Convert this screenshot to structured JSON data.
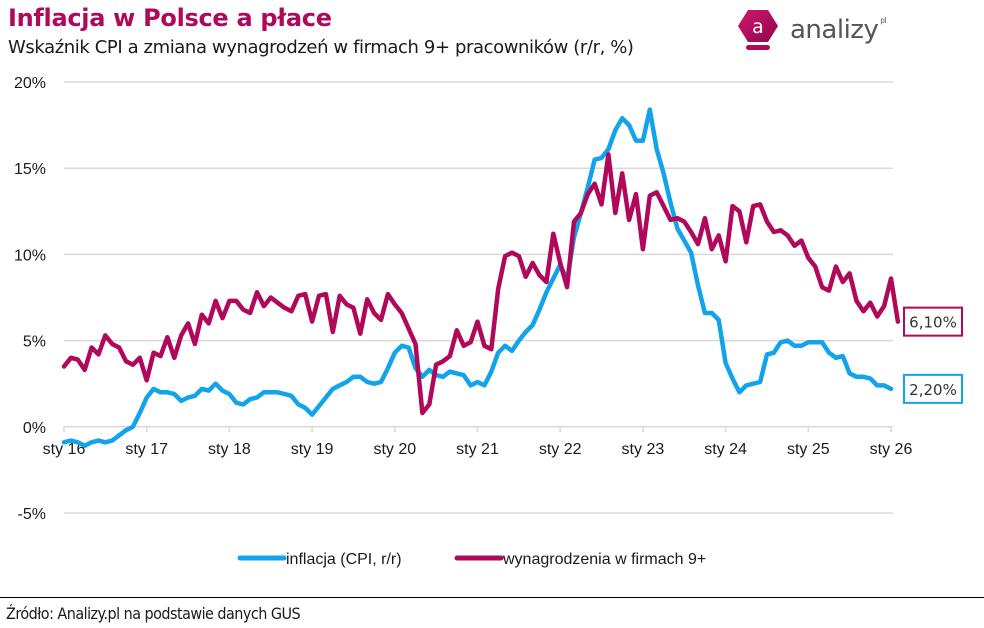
{
  "header": {
    "title": "Inflacja w Polsce a płace",
    "subtitle": "Wskaźnik CPI a zmiana wynagrodzeń w firmach 9+ pracowników (r/r, %)"
  },
  "logo": {
    "text": "analizy",
    "suffix": "pl",
    "mark_letter": "a",
    "color": "#b0085a"
  },
  "footer": {
    "source": "Źródło: Analizy.pl na podstawie danych GUS"
  },
  "chart_data": {
    "type": "line",
    "title": "Inflacja w Polsce a płace",
    "subtitle": "Wskaźnik CPI a zmiana wynagrodzeń w firmach 9+ pracowników (r/r, %)",
    "xlabel": "",
    "ylabel": "",
    "ylim": [
      -5,
      20
    ],
    "yticks": [
      -5,
      0,
      5,
      10,
      15,
      20
    ],
    "ytick_labels": [
      "-5%",
      "0%",
      "5%",
      "10%",
      "15%",
      "20%"
    ],
    "x_start": "2016-01",
    "x_end": "2026-01",
    "frequency": "monthly",
    "xtick_labels": [
      "sty 16",
      "sty 17",
      "sty 18",
      "sty 19",
      "sty 20",
      "sty 21",
      "sty 22",
      "sty 23",
      "sty 24",
      "sty 25",
      "sty 26"
    ],
    "grid": true,
    "legend_position": "bottom-center",
    "series": [
      {
        "name": "inflacja (CPI, r/r)",
        "color": "#12a3ea",
        "end_label": "2,20%",
        "values": [
          -0.9,
          -0.8,
          -0.9,
          -1.1,
          -0.9,
          -0.8,
          -0.9,
          -0.8,
          -0.5,
          -0.2,
          0.0,
          0.8,
          1.7,
          2.2,
          2.0,
          2.0,
          1.9,
          1.5,
          1.7,
          1.8,
          2.2,
          2.1,
          2.5,
          2.1,
          1.9,
          1.4,
          1.3,
          1.6,
          1.7,
          2.0,
          2.0,
          2.0,
          1.9,
          1.8,
          1.3,
          1.1,
          0.7,
          1.2,
          1.7,
          2.2,
          2.4,
          2.6,
          2.9,
          2.9,
          2.6,
          2.5,
          2.6,
          3.4,
          4.3,
          4.7,
          4.6,
          3.4,
          2.9,
          3.3,
          3.0,
          2.9,
          3.2,
          3.1,
          3.0,
          2.4,
          2.6,
          2.4,
          3.2,
          4.3,
          4.7,
          4.4,
          5.0,
          5.5,
          5.9,
          6.8,
          7.8,
          8.6,
          9.4,
          8.5,
          11.0,
          12.4,
          13.9,
          15.5,
          15.6,
          16.1,
          17.2,
          17.9,
          17.5,
          16.6,
          16.6,
          18.4,
          16.1,
          14.7,
          13.0,
          11.5,
          10.8,
          10.1,
          8.2,
          6.6,
          6.6,
          6.2,
          3.7,
          2.8,
          2.0,
          2.4,
          2.5,
          2.6,
          4.2,
          4.3,
          4.9,
          5.0,
          4.7,
          4.7,
          4.9,
          4.9,
          4.9,
          4.3,
          4.0,
          4.1,
          3.1,
          2.9,
          2.9,
          2.8,
          2.4,
          2.4,
          2.2
        ]
      },
      {
        "name": "wynagrodzenia w firmach 9+",
        "color": "#b0085a",
        "end_label": "6,10%",
        "values": [
          3.5,
          4.0,
          3.9,
          3.3,
          4.6,
          4.2,
          5.3,
          4.8,
          4.6,
          3.8,
          3.6,
          4.0,
          2.7,
          4.3,
          4.1,
          5.2,
          4.0,
          5.3,
          6.0,
          4.8,
          6.5,
          6.0,
          7.3,
          6.3,
          7.3,
          7.3,
          6.8,
          6.6,
          7.8,
          7.0,
          7.5,
          7.2,
          6.9,
          6.7,
          7.6,
          7.7,
          6.1,
          7.6,
          7.7,
          5.5,
          7.6,
          7.1,
          6.9,
          5.4,
          7.4,
          6.6,
          6.2,
          7.7,
          7.1,
          6.6,
          5.7,
          4.8,
          0.8,
          1.3,
          3.6,
          3.8,
          4.1,
          5.6,
          4.7,
          4.9,
          6.1,
          4.7,
          4.5,
          8.0,
          9.9,
          10.1,
          9.9,
          8.7,
          9.5,
          8.8,
          8.4,
          11.2,
          9.5,
          8.1,
          11.9,
          12.4,
          13.5,
          14.1,
          12.9,
          15.8,
          12.4,
          14.7,
          12.0,
          13.5,
          10.3,
          13.4,
          13.6,
          12.8,
          12.0,
          12.1,
          11.9,
          11.3,
          10.6,
          12.1,
          10.3,
          11.1,
          9.6,
          12.8,
          12.5,
          10.7,
          12.8,
          12.9,
          11.9,
          11.3,
          11.4,
          11.1,
          10.5,
          10.8,
          9.8,
          9.3,
          8.1,
          7.9,
          9.3,
          8.4,
          8.9,
          7.3,
          6.7,
          7.2,
          6.4,
          7.0,
          8.6,
          6.1
        ]
      }
    ]
  }
}
